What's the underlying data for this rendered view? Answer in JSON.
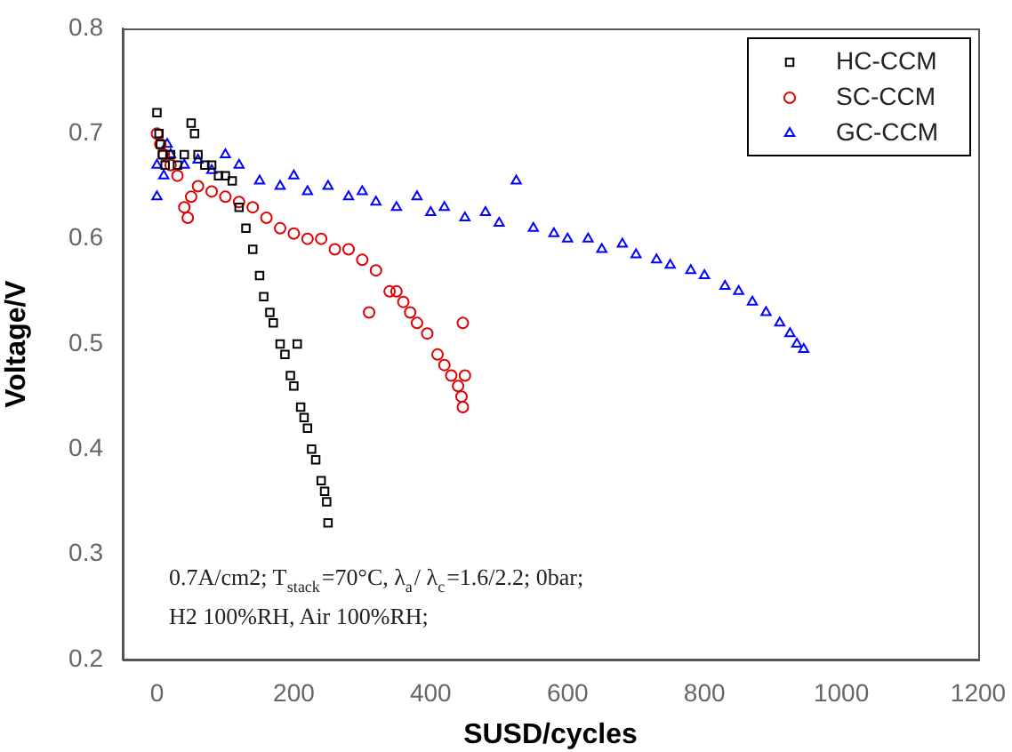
{
  "chart_data": {
    "type": "scatter",
    "xlabel": "SUSD/cycles",
    "ylabel": "Voltage/V",
    "xlim": [
      -50,
      1200
    ],
    "xticks": [
      0,
      200,
      400,
      600,
      800,
      1000,
      1200
    ],
    "ylim": [
      0.2,
      0.8
    ],
    "yticks": [
      0.2,
      0.3,
      0.4,
      0.5,
      0.6,
      0.7,
      0.8
    ],
    "grid": false,
    "legend": "top right",
    "annotations": [
      "0.7A/cm2; T$_{stack}$=70°C, λ$_{a}$/ λ$_{c}$=1.6/2.2; 0bar;",
      "H2 100%RH, Air 100%RH;"
    ],
    "series": [
      {
        "name": "HC-CCM",
        "color": "#000000",
        "marker": "square",
        "x": [
          0,
          3,
          5,
          8,
          12,
          20,
          30,
          40,
          50,
          55,
          60,
          70,
          80,
          90,
          100,
          110,
          120,
          130,
          140,
          150,
          156,
          165,
          170,
          180,
          187,
          195,
          200,
          205,
          210,
          215,
          220,
          226,
          232,
          240,
          245,
          248,
          250
        ],
        "values": [
          0.72,
          0.7,
          0.69,
          0.68,
          0.67,
          0.68,
          0.67,
          0.68,
          0.71,
          0.7,
          0.68,
          0.67,
          0.67,
          0.66,
          0.66,
          0.655,
          0.63,
          0.61,
          0.59,
          0.565,
          0.545,
          0.53,
          0.52,
          0.5,
          0.49,
          0.47,
          0.46,
          0.5,
          0.44,
          0.43,
          0.42,
          0.4,
          0.39,
          0.37,
          0.36,
          0.35,
          0.33
        ]
      },
      {
        "name": "SC-CCM",
        "color": "#e00000",
        "marker": "circle",
        "x": [
          0,
          5,
          10,
          20,
          30,
          40,
          45,
          50,
          60,
          80,
          100,
          120,
          140,
          160,
          180,
          200,
          220,
          240,
          260,
          280,
          300,
          310,
          320,
          340,
          350,
          360,
          370,
          380,
          395,
          410,
          420,
          430,
          440,
          445,
          447,
          447,
          450
        ],
        "values": [
          0.7,
          0.69,
          0.68,
          0.67,
          0.66,
          0.63,
          0.62,
          0.64,
          0.65,
          0.645,
          0.64,
          0.635,
          0.63,
          0.62,
          0.61,
          0.605,
          0.6,
          0.6,
          0.59,
          0.59,
          0.58,
          0.53,
          0.57,
          0.55,
          0.55,
          0.54,
          0.53,
          0.52,
          0.51,
          0.49,
          0.48,
          0.47,
          0.46,
          0.45,
          0.52,
          0.44,
          0.47
        ]
      },
      {
        "name": "GC-CCM",
        "color": "#0000ff",
        "marker": "triangle",
        "x": [
          0,
          0,
          15,
          10,
          20,
          40,
          60,
          80,
          100,
          120,
          150,
          180,
          200,
          220,
          250,
          280,
          300,
          320,
          350,
          380,
          400,
          420,
          450,
          480,
          500,
          525,
          550,
          580,
          600,
          630,
          650,
          680,
          700,
          730,
          750,
          780,
          800,
          830,
          850,
          870,
          890,
          910,
          925,
          935,
          945
        ],
        "values": [
          0.67,
          0.64,
          0.69,
          0.66,
          0.68,
          0.67,
          0.675,
          0.665,
          0.68,
          0.67,
          0.655,
          0.65,
          0.66,
          0.645,
          0.65,
          0.64,
          0.645,
          0.635,
          0.63,
          0.64,
          0.625,
          0.63,
          0.62,
          0.625,
          0.615,
          0.655,
          0.61,
          0.605,
          0.6,
          0.6,
          0.59,
          0.595,
          0.585,
          0.58,
          0.575,
          0.57,
          0.565,
          0.555,
          0.55,
          0.54,
          0.53,
          0.52,
          0.51,
          0.5,
          0.495
        ]
      }
    ]
  }
}
